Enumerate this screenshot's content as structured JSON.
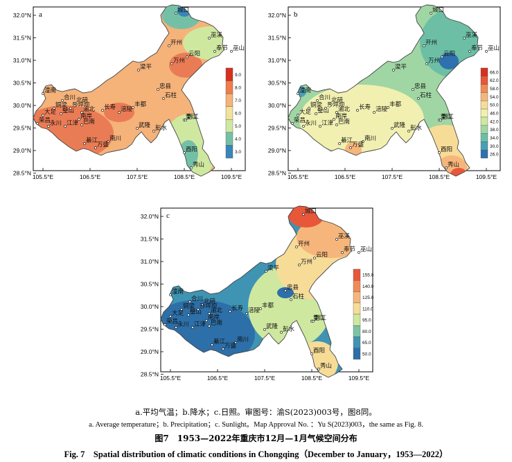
{
  "panels": [
    {
      "id": "a",
      "letter": "a",
      "y_ticks": [
        "32.0°N",
        "31.5°N",
        "31.0°N",
        "30.5°N",
        "30.0°N",
        "29.5°N",
        "29.0°N",
        "28.5°N"
      ],
      "x_ticks": [
        "105.5°E",
        "106.5°E",
        "107.5°E",
        "108.5°E",
        "109.5°E"
      ],
      "legend_values": [
        "9.0",
        "8.0",
        "7.0",
        "6.0",
        "5.0",
        "4.0",
        "3.0"
      ],
      "legend_colors": [
        "#d7301f",
        "#f07c4a",
        "#f5b279",
        "#f3e29a",
        "#cfe8a0",
        "#74c0a6",
        "#3a85b8"
      ],
      "colors": {
        "low": "#3a85b8",
        "mid": "#cfe8a0",
        "warm": "#f5b279",
        "hot": "#ea7c55"
      }
    },
    {
      "id": "b",
      "letter": "b",
      "y_ticks": [
        "32.0°N",
        "31.5°N",
        "31.0°N",
        "30.5°N",
        "30.0°N",
        "29.5°N",
        "29.0°N",
        "28.5°N"
      ],
      "x_ticks": [
        "105.5°E",
        "106.5°E",
        "107.5°E",
        "108.5°E",
        "109.5°E"
      ],
      "legend_values": [
        "66.0",
        "62.0",
        "58.0",
        "54.0",
        "50.0",
        "46.0",
        "42.0",
        "38.0",
        "34.0",
        "30.0",
        "26.0"
      ],
      "legend_colors": [
        "#d7301f",
        "#e8573a",
        "#f28a55",
        "#f6b67b",
        "#f7dc98",
        "#f1f0b0",
        "#cfe8a0",
        "#a0d6a3",
        "#6cbfa5",
        "#4a9fb5",
        "#2f70ae"
      ],
      "colors": {
        "low": "#2f70ae",
        "mid": "#f1f0b0",
        "warm": "#f6b67b",
        "hot": "#e8573a"
      }
    },
    {
      "id": "c",
      "letter": "c",
      "y_ticks": [
        "32.0°N",
        "31.5°N",
        "31.0°N",
        "30.5°N",
        "30.0°N",
        "29.5°N",
        "29.0°N",
        "28.5°N"
      ],
      "x_ticks": [
        "105.5°E",
        "106.5°E",
        "107.5°E",
        "108.5°E",
        "109.5°E"
      ],
      "legend_values": [
        "155.0",
        "140.0",
        "125.0",
        "110.0",
        "95.0",
        "80.0",
        "65.0",
        "50.0"
      ],
      "legend_colors": [
        "#e8573a",
        "#f28a55",
        "#f6b67b",
        "#f7dc98",
        "#cfe8a0",
        "#7cc3a5",
        "#3f94b4",
        "#2d6fa8"
      ],
      "colors": {
        "low": "#2d6fa8",
        "mid": "#cfe8a0",
        "warm": "#f6b67b",
        "hot": "#e8573a"
      }
    }
  ],
  "places": [
    {
      "name": "城口"
    },
    {
      "name": "巫溪"
    },
    {
      "name": "开州"
    },
    {
      "name": "奉节"
    },
    {
      "name": "巫山"
    },
    {
      "name": "云阳"
    },
    {
      "name": "万州"
    },
    {
      "name": "梁平"
    },
    {
      "name": "忠县"
    },
    {
      "name": "垫江"
    },
    {
      "name": "石柱"
    },
    {
      "name": "潼南"
    },
    {
      "name": "合川"
    },
    {
      "name": "铜梁"
    },
    {
      "name": "北碚"
    },
    {
      "name": "大足"
    },
    {
      "name": "璧山"
    },
    {
      "name": "渝北"
    },
    {
      "name": "长寿"
    },
    {
      "name": "涪陵"
    },
    {
      "name": "丰都"
    },
    {
      "name": "荣昌"
    },
    {
      "name": "永川"
    },
    {
      "name": "江津"
    },
    {
      "name": "巴南"
    },
    {
      "name": "南川"
    },
    {
      "name": "武隆"
    },
    {
      "name": "彭水"
    },
    {
      "name": "黔江"
    },
    {
      "name": "綦江"
    },
    {
      "name": "万盛"
    },
    {
      "name": "酉阳"
    },
    {
      "name": "秀山"
    },
    {
      "name": "沙坪坝"
    },
    {
      "name": "南岸"
    }
  ],
  "captions": {
    "line1": "a.平均气温；b.降水；c.日照。审图号：渝S(2023)003号，图8同。",
    "line2": "a. Average temperature；b. Precipitation；c. Sunlight。Map Approval No. ：Yu S(2023)003，the same as Fig. 8.",
    "line3": "图7　1953—2022年重庆市12月—1月气候空间分布",
    "line4": "Fig. 7　Spatial distribution of climatic conditions in Chongqing（December to January，1953—2022）"
  }
}
